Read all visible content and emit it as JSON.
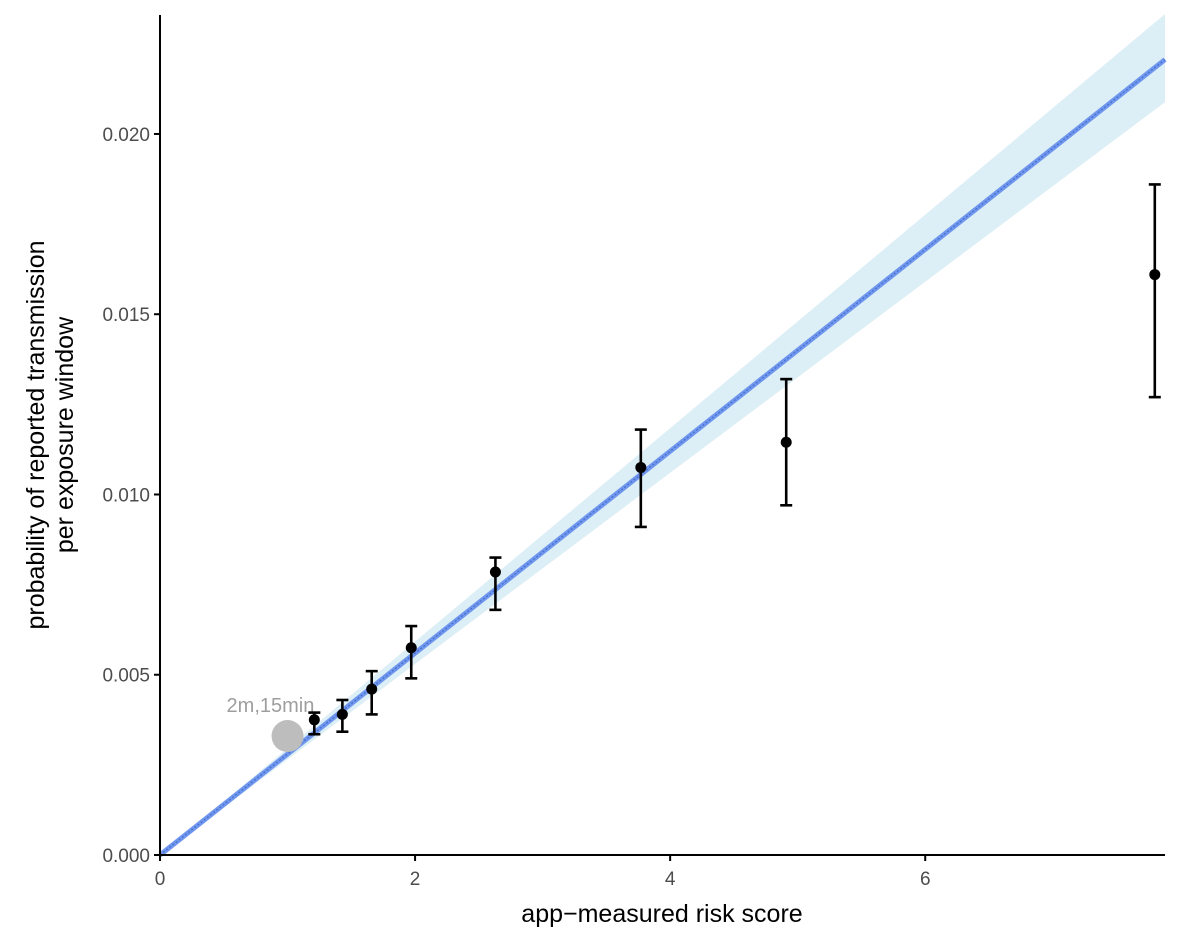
{
  "chart_data": {
    "type": "scatter",
    "xlabel": "app−measured risk score",
    "ylabel_lines": [
      "probability of reported transmission",
      "per exposure window"
    ],
    "xlim": [
      0,
      7.88
    ],
    "ylim": [
      0,
      0.0233
    ],
    "x_ticks": [
      0,
      2,
      4,
      6
    ],
    "x_tick_labels": [
      "0",
      "2",
      "4",
      "6"
    ],
    "y_ticks": [
      0,
      0.005,
      0.01,
      0.015,
      0.02
    ],
    "y_tick_labels": [
      "0.000",
      "0.005",
      "0.010",
      "0.015",
      "0.020"
    ],
    "grid": false,
    "points": [
      {
        "x": 1.21,
        "y": 0.00375,
        "low": 0.00335,
        "high": 0.00395
      },
      {
        "x": 1.43,
        "y": 0.0039,
        "low": 0.00342,
        "high": 0.0043
      },
      {
        "x": 1.66,
        "y": 0.0046,
        "low": 0.0039,
        "high": 0.0051
      },
      {
        "x": 1.97,
        "y": 0.00575,
        "low": 0.0049,
        "high": 0.00635
      },
      {
        "x": 2.63,
        "y": 0.00785,
        "low": 0.0068,
        "high": 0.00825
      },
      {
        "x": 3.77,
        "y": 0.01075,
        "low": 0.0091,
        "high": 0.0118
      },
      {
        "x": 4.91,
        "y": 0.01145,
        "low": 0.0097,
        "high": 0.0132
      },
      {
        "x": 7.8,
        "y": 0.0161,
        "low": 0.0127,
        "high": 0.0186
      }
    ],
    "fit_line": {
      "slope": 0.0028,
      "intercept": 0.0,
      "band_slope_low": 0.00265,
      "band_slope_high": 0.00296
    },
    "reference_point": {
      "x": 1.0,
      "y": 0.0033,
      "label": "2m,15min"
    },
    "colors": {
      "points": "#000000",
      "fit_line": "#6f97ee",
      "fit_line_hatch": "#3b5dbf",
      "band": "#d6ebf4",
      "reference_point": "#bdbdbd",
      "reference_label": "#9e9e9e",
      "axis": "#000000",
      "tick_label": "#4d4d4d"
    }
  }
}
